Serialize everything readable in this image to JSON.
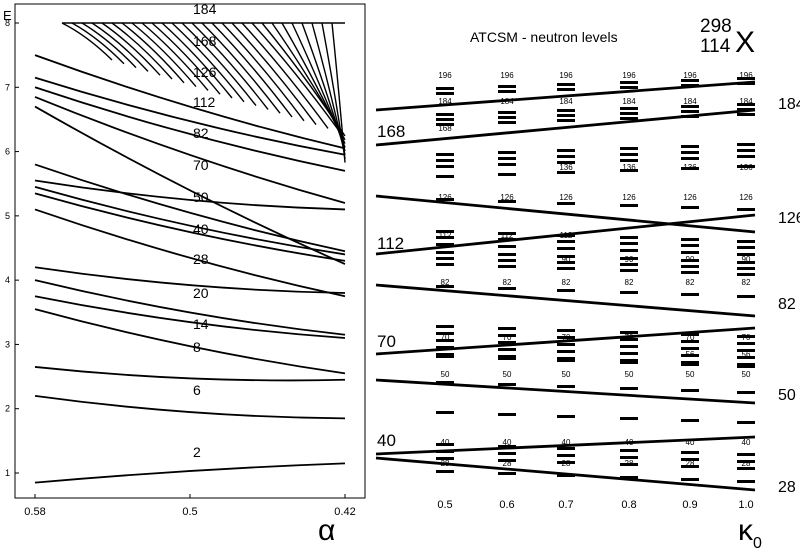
{
  "chart_data": [
    {
      "type": "line",
      "ylabel": "E",
      "xlabel": "α",
      "xlim": [
        0.58,
        0.42
      ],
      "ylim": [
        0.5,
        8.1
      ],
      "xticks": [
        "0.58",
        "0.5",
        "0.42"
      ],
      "yticks": [
        "1",
        "2",
        "3",
        "4",
        "5",
        "6",
        "7",
        "8"
      ],
      "magic_numbers": [
        "2",
        "6",
        "8",
        "14",
        "20",
        "28",
        "40",
        "50",
        "70",
        "82",
        "112",
        "126",
        "168",
        "184"
      ],
      "series": [
        {
          "x": [
            0.58,
            0.42
          ],
          "y": [
            0.85,
            1.15
          ]
        },
        {
          "x": [
            0.58,
            0.42
          ],
          "y": [
            2.2,
            1.85
          ]
        },
        {
          "x": [
            0.58,
            0.42
          ],
          "y": [
            2.65,
            2.45
          ]
        },
        {
          "x": [
            0.58,
            0.42
          ],
          "y": [
            3.55,
            2.55
          ]
        },
        {
          "x": [
            0.58,
            0.42
          ],
          "y": [
            3.75,
            3.1
          ]
        },
        {
          "x": [
            0.58,
            0.42
          ],
          "y": [
            4.0,
            3.15
          ]
        },
        {
          "x": [
            0.58,
            0.42
          ],
          "y": [
            4.2,
            3.8
          ]
        },
        {
          "x": [
            0.58,
            0.42
          ],
          "y": [
            5.1,
            3.75
          ]
        },
        {
          "x": [
            0.58,
            0.42
          ],
          "y": [
            5.35,
            4.3
          ]
        },
        {
          "x": [
            0.58,
            0.42
          ],
          "y": [
            5.45,
            4.4
          ]
        },
        {
          "x": [
            0.58,
            0.42
          ],
          "y": [
            5.55,
            5.1
          ]
        },
        {
          "x": [
            0.58,
            0.42
          ],
          "y": [
            5.8,
            4.45
          ]
        },
        {
          "x": [
            0.58,
            0.42
          ],
          "y": [
            6.7,
            4.25
          ]
        },
        {
          "x": [
            0.58,
            0.42
          ],
          "y": [
            6.85,
            5.2
          ]
        },
        {
          "x": [
            0.58,
            0.42
          ],
          "y": [
            7.0,
            5.7
          ]
        },
        {
          "x": [
            0.58,
            0.42
          ],
          "y": [
            7.15,
            5.95
          ]
        },
        {
          "x": [
            0.58,
            0.42
          ],
          "y": [
            7.5,
            6.05
          ]
        }
      ]
    },
    {
      "type": "scatter",
      "title": "ATCSM - neutron levels",
      "xlabel": "κ0",
      "xticks": [
        "0.5",
        "0.6",
        "0.7",
        "0.8",
        "0.9",
        "1.0"
      ],
      "nucleus": {
        "mass": "298",
        "charge": "114",
        "symbol": "X"
      },
      "left_labels": [
        "168",
        "112",
        "70",
        "40"
      ],
      "right_labels": [
        "184",
        "126",
        "82",
        "50",
        "28"
      ],
      "gap_labels": [
        {
          "label": "196",
          "values": [
            "196",
            "196",
            "196",
            "196",
            "196",
            "196"
          ]
        },
        {
          "label": "184",
          "values": [
            "184",
            "184",
            "184",
            "184",
            "184",
            "184"
          ]
        },
        {
          "label": "168",
          "values": [
            "168",
            "",
            "",
            "",
            "",
            ""
          ]
        },
        {
          "label": "136",
          "values": [
            "",
            "",
            "136",
            "136",
            "136",
            "136"
          ]
        },
        {
          "label": "126",
          "values": [
            "126",
            "126",
            "126",
            "126",
            "126",
            "126"
          ]
        },
        {
          "label": "112",
          "values": [
            "112",
            "112",
            "112",
            "",
            "",
            ""
          ]
        },
        {
          "label": "90",
          "values": [
            "",
            "",
            "90",
            "90",
            "90",
            "90"
          ]
        },
        {
          "label": "82",
          "values": [
            "82",
            "82",
            "82",
            "82",
            "82",
            "82"
          ]
        },
        {
          "label": "70",
          "values": [
            "70",
            "70",
            "70",
            "70",
            "70",
            "70"
          ]
        },
        {
          "label": "56",
          "values": [
            "",
            "",
            "",
            "",
            "56",
            "56"
          ]
        },
        {
          "label": "50",
          "values": [
            "50",
            "50",
            "50",
            "50",
            "50",
            "50"
          ]
        },
        {
          "label": "40",
          "values": [
            "40",
            "40",
            "40",
            "40",
            "40",
            "40"
          ]
        },
        {
          "label": "28",
          "values": [
            "28",
            "28",
            "28",
            "28",
            "28",
            "28"
          ]
        }
      ]
    }
  ]
}
